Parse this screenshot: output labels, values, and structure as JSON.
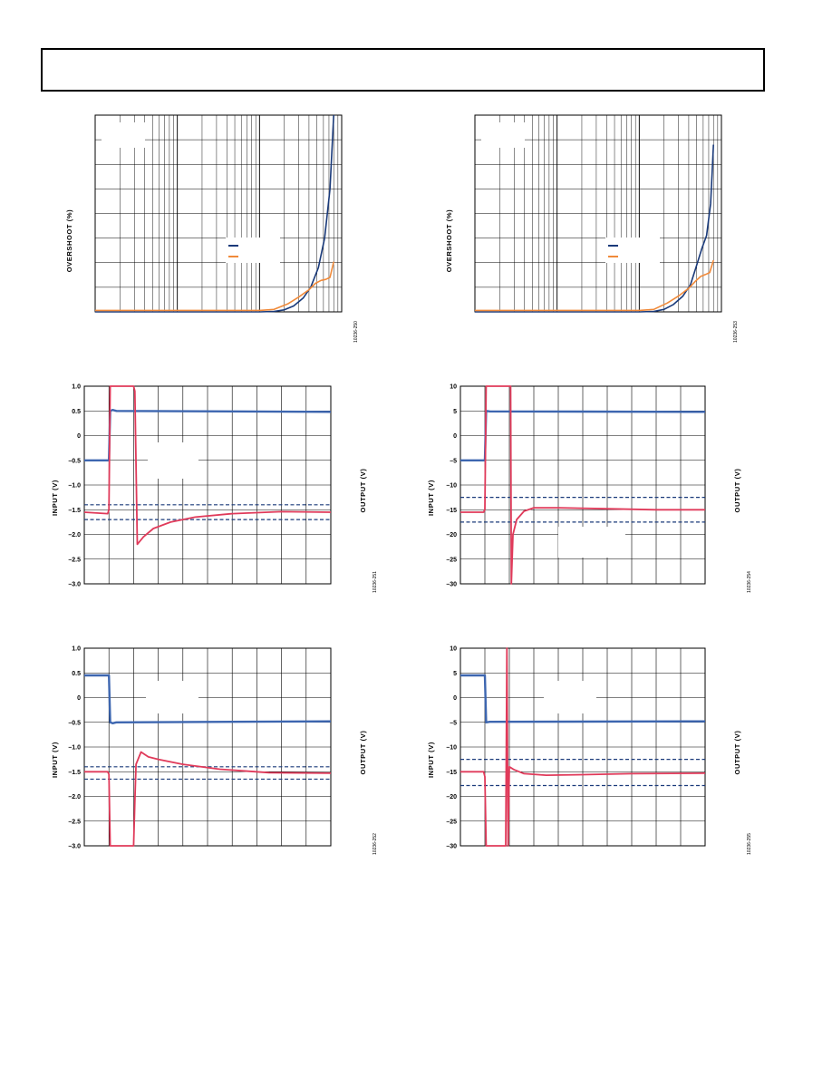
{
  "colors": {
    "navy": "#1a3a7a",
    "orange": "#f08a3a",
    "blue": "#3d66b0",
    "red": "#e03a5a",
    "grid": "#000000"
  },
  "chart_data": [
    {
      "type": "line",
      "ylabel": "OVERSHOOT (%)",
      "xscale": "log",
      "grid": true,
      "figure_id": "10236-250",
      "legend_placement": "center-right",
      "series": [
        {
          "color": "navy",
          "x": [
            1,
            100,
            150,
            200,
            260,
            340,
            420,
            520,
            620,
            720,
            800
          ],
          "y": [
            0,
            0,
            0.1,
            0.4,
            1.2,
            2.8,
            5,
            9,
            15,
            25,
            40
          ]
        },
        {
          "color": "orange",
          "x": [
            1,
            100,
            150,
            220,
            300,
            400,
            480,
            560,
            640,
            720,
            800
          ],
          "y": [
            0.3,
            0.3,
            0.5,
            1.6,
            3.0,
            4.5,
            5.8,
            6.4,
            6.6,
            7.0,
            10.2
          ]
        }
      ]
    },
    {
      "type": "line",
      "ylabel": "OVERSHOOT (%)",
      "xscale": "log",
      "grid": true,
      "figure_id": "10236-253",
      "legend_placement": "center-right",
      "series": [
        {
          "color": "navy",
          "x": [
            1,
            100,
            150,
            200,
            260,
            340,
            420,
            500,
            580,
            660,
            740,
            800
          ],
          "y": [
            0,
            0,
            0.1,
            0.5,
            1.5,
            3.2,
            5.5,
            9.5,
            13,
            15.5,
            22,
            34
          ]
        },
        {
          "color": "orange",
          "x": [
            1,
            100,
            150,
            220,
            300,
            400,
            480,
            560,
            640,
            720,
            800
          ],
          "y": [
            0.3,
            0.3,
            0.5,
            1.8,
            3.2,
            4.8,
            6.2,
            7.2,
            7.6,
            8.0,
            10.5
          ]
        }
      ]
    },
    {
      "type": "line",
      "ylabel": "INPUT (V)",
      "y2label": "OUTPUT (V)",
      "ylim": [
        -3.0,
        1.0
      ],
      "yticks": [
        "1.0",
        "0.5",
        "0",
        "–0.5",
        "–1.0",
        "–1.5",
        "–2.0",
        "–2.5",
        "–3.0"
      ],
      "grid": true,
      "figure_id": "10236-251",
      "input_trace": {
        "color": "blue",
        "x": [
          0,
          1.0,
          1.05,
          1.15,
          1.3,
          10
        ],
        "y": [
          -0.5,
          -0.5,
          0.5,
          0.52,
          0.5,
          0.48
        ]
      },
      "output_trace": {
        "color": "red",
        "x": [
          0,
          0.95,
          1.0,
          1.05,
          1.1,
          2.0,
          2.05,
          2.15,
          2.4,
          2.8,
          3.5,
          4.5,
          6,
          8,
          10
        ],
        "y": [
          -1.55,
          -1.58,
          -1.5,
          1.2,
          1.2,
          1.2,
          0.9,
          -2.2,
          -2.05,
          -1.88,
          -1.75,
          -1.65,
          -1.58,
          -1.54,
          -1.55
        ]
      },
      "dashed_levels": [
        -1.4,
        -1.7
      ]
    },
    {
      "type": "line",
      "ylabel": "INPUT (V)",
      "y2label": "OUTPUT (V)",
      "ylim": [
        -30,
        10
      ],
      "yticks": [
        "10",
        "5",
        "0",
        "–5",
        "–10",
        "–15",
        "–20",
        "–25",
        "–30"
      ],
      "grid": true,
      "figure_id": "10236-254",
      "input_trace": {
        "color": "blue",
        "x": [
          0,
          1.0,
          1.05,
          1.2,
          10
        ],
        "y": [
          -5,
          -5,
          5,
          4.9,
          4.8
        ]
      },
      "output_trace": {
        "color": "red",
        "x": [
          0,
          0.95,
          1.0,
          1.05,
          1.1,
          2.05,
          2.08,
          2.15,
          2.3,
          2.6,
          3.0,
          4,
          6,
          8,
          10
        ],
        "y": [
          -15.5,
          -15.5,
          -15,
          12,
          12,
          12,
          -31,
          -20,
          -17,
          -15.3,
          -14.6,
          -14.6,
          -14.8,
          -15,
          -15
        ]
      },
      "dashed_levels": [
        -12.5,
        -17.5
      ]
    },
    {
      "type": "line",
      "ylabel": "INPUT (V)",
      "y2label": "OUTPUT (V)",
      "ylim": [
        -3.0,
        1.0
      ],
      "yticks": [
        "1.0",
        "0.5",
        "0",
        "–0.5",
        "–1.0",
        "–1.5",
        "–2.0",
        "–2.5",
        "–3.0"
      ],
      "grid": true,
      "figure_id": "10236-252",
      "input_trace": {
        "color": "blue",
        "x": [
          0,
          1.0,
          1.05,
          1.15,
          1.3,
          10
        ],
        "y": [
          0.45,
          0.45,
          -0.5,
          -0.52,
          -0.5,
          -0.48
        ]
      },
      "output_trace": {
        "color": "red",
        "x": [
          0,
          0.95,
          1.0,
          1.05,
          2.0,
          2.05,
          2.1,
          2.3,
          2.6,
          3.0,
          4,
          5.5,
          7.5,
          10
        ],
        "y": [
          -1.5,
          -1.5,
          -1.55,
          -3.2,
          -3.2,
          -2.1,
          -1.35,
          -1.1,
          -1.2,
          -1.25,
          -1.35,
          -1.45,
          -1.52,
          -1.53
        ]
      },
      "dashed_levels": [
        -1.4,
        -1.65
      ]
    },
    {
      "type": "line",
      "ylabel": "INPUT (V)",
      "y2label": "OUTPUT (V)",
      "ylim": [
        -30,
        10
      ],
      "yticks": [
        "10",
        "5",
        "0",
        "–5",
        "–10",
        "–15",
        "–20",
        "–25",
        "–30"
      ],
      "grid": true,
      "figure_id": "10236-255",
      "input_trace": {
        "color": "blue",
        "x": [
          0,
          1.0,
          1.05,
          1.2,
          10
        ],
        "y": [
          4.5,
          4.5,
          -5,
          -4.9,
          -4.8
        ]
      },
      "output_trace": {
        "color": "red",
        "x": [
          0,
          0.95,
          1.0,
          1.05,
          1.85,
          1.9,
          1.95,
          2.0,
          2.2,
          2.6,
          3.5,
          5,
          7,
          10
        ],
        "y": [
          -15,
          -15,
          -16,
          -31,
          -31,
          10,
          -30,
          -14,
          -14.6,
          -15.4,
          -15.7,
          -15.6,
          -15.4,
          -15.3
        ]
      },
      "dashed_levels": [
        -12.5,
        -17.8
      ]
    }
  ]
}
